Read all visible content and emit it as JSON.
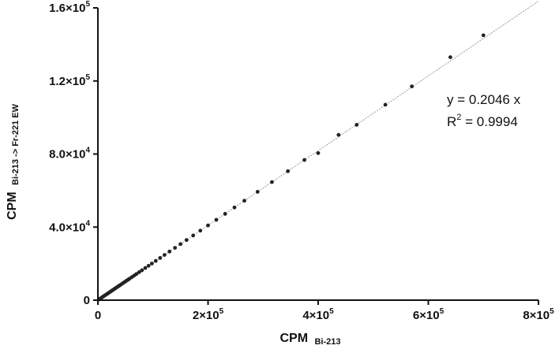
{
  "chart_data": {
    "type": "scatter",
    "title": "",
    "xlabel": {
      "main": "CPM",
      "sub": "Bi-213"
    },
    "ylabel": {
      "main": "CPM",
      "sub": "Bi-213 -> Fr-221 EW"
    },
    "xlim": [
      0,
      800000
    ],
    "ylim": [
      0,
      160000
    ],
    "x_ticks": [
      {
        "value": 0,
        "mantissa": "0",
        "exp": ""
      },
      {
        "value": 200000,
        "mantissa": "2×10",
        "exp": "5"
      },
      {
        "value": 400000,
        "mantissa": "4×10",
        "exp": "5"
      },
      {
        "value": 600000,
        "mantissa": "6×10",
        "exp": "5"
      },
      {
        "value": 800000,
        "mantissa": "8×10",
        "exp": "5"
      }
    ],
    "y_ticks": [
      {
        "value": 0,
        "mantissa": "0",
        "exp": ""
      },
      {
        "value": 40000,
        "mantissa": "4.0×10",
        "exp": "4"
      },
      {
        "value": 80000,
        "mantissa": "8.0×10",
        "exp": "4"
      },
      {
        "value": 120000,
        "mantissa": "1.2×10",
        "exp": "5"
      },
      {
        "value": 160000,
        "mantissa": "1.6×10",
        "exp": "5"
      }
    ],
    "fit_line": {
      "slope": 0.2046,
      "x_range": [
        0,
        800000
      ]
    },
    "annotations": {
      "equation": "y = 0.2046 x",
      "r2_prefix": "R",
      "r2_sup": "2",
      "r2_suffix": " = 0.9994"
    },
    "points": [
      {
        "x": 2000,
        "y": 400
      },
      {
        "x": 4000,
        "y": 820
      },
      {
        "x": 6000,
        "y": 1230
      },
      {
        "x": 8000,
        "y": 1640
      },
      {
        "x": 10000,
        "y": 2050
      },
      {
        "x": 12000,
        "y": 2460
      },
      {
        "x": 14000,
        "y": 2870
      },
      {
        "x": 16000,
        "y": 3270
      },
      {
        "x": 18000,
        "y": 3680
      },
      {
        "x": 20000,
        "y": 4090
      },
      {
        "x": 22000,
        "y": 4500
      },
      {
        "x": 24000,
        "y": 4910
      },
      {
        "x": 26000,
        "y": 5320
      },
      {
        "x": 28000,
        "y": 5730
      },
      {
        "x": 30000,
        "y": 6140
      },
      {
        "x": 32000,
        "y": 6550
      },
      {
        "x": 34000,
        "y": 6960
      },
      {
        "x": 36000,
        "y": 7370
      },
      {
        "x": 38000,
        "y": 7780
      },
      {
        "x": 40000,
        "y": 8180
      },
      {
        "x": 43000,
        "y": 8800
      },
      {
        "x": 46000,
        "y": 9410
      },
      {
        "x": 49000,
        "y": 10030
      },
      {
        "x": 52000,
        "y": 10640
      },
      {
        "x": 55000,
        "y": 11250
      },
      {
        "x": 58000,
        "y": 11870
      },
      {
        "x": 62000,
        "y": 12690
      },
      {
        "x": 66000,
        "y": 13500
      },
      {
        "x": 70000,
        "y": 14320
      },
      {
        "x": 75000,
        "y": 15350
      },
      {
        "x": 80000,
        "y": 16370
      },
      {
        "x": 86000,
        "y": 17600
      },
      {
        "x": 92000,
        "y": 18820
      },
      {
        "x": 98000,
        "y": 20050
      },
      {
        "x": 105000,
        "y": 21480
      },
      {
        "x": 113000,
        "y": 23120
      },
      {
        "x": 121000,
        "y": 24760
      },
      {
        "x": 130000,
        "y": 26600
      },
      {
        "x": 140000,
        "y": 28640
      },
      {
        "x": 150000,
        "y": 30690
      },
      {
        "x": 161000,
        "y": 32940
      },
      {
        "x": 173000,
        "y": 35400
      },
      {
        "x": 186000,
        "y": 38060
      },
      {
        "x": 200000,
        "y": 40920
      },
      {
        "x": 215000,
        "y": 43990
      },
      {
        "x": 231000,
        "y": 47260
      },
      {
        "x": 248000,
        "y": 50740
      },
      {
        "x": 266000,
        "y": 54420
      },
      {
        "x": 290000,
        "y": 59330
      },
      {
        "x": 316000,
        "y": 64650
      },
      {
        "x": 345000,
        "y": 70590
      },
      {
        "x": 375000,
        "y": 76730
      },
      {
        "x": 400000,
        "y": 80500
      },
      {
        "x": 437000,
        "y": 90500
      },
      {
        "x": 470000,
        "y": 96000
      },
      {
        "x": 522000,
        "y": 107000
      },
      {
        "x": 570000,
        "y": 117000
      },
      {
        "x": 640000,
        "y": 133000
      },
      {
        "x": 700000,
        "y": 145000
      }
    ],
    "grid": false,
    "colors": {
      "points": "#222222",
      "fit_line": "#9a9a9a",
      "axis": "#111111"
    }
  }
}
